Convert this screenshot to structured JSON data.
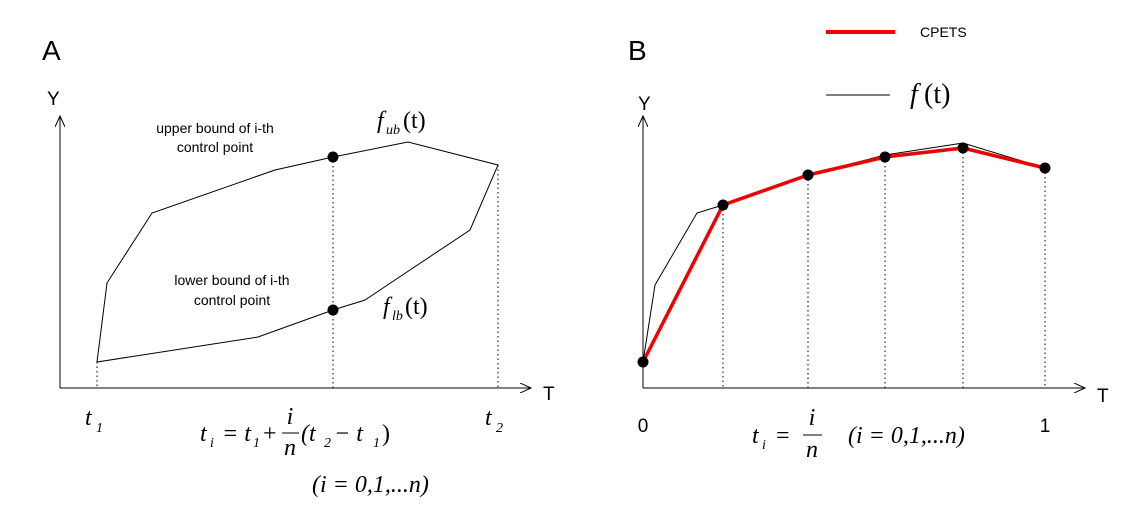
{
  "panel_a": {
    "label": "A",
    "y_axis": "Y",
    "x_axis": "T",
    "upper_label": [
      "upper bound of i-th",
      "control point"
    ],
    "lower_label": [
      "lower bound of i-th",
      "control point"
    ],
    "upper_curve": {
      "name": "f",
      "sub": "ub",
      "arg": "(t)"
    },
    "lower_curve": {
      "name": "f",
      "sub": "lb",
      "arg": "(t)"
    },
    "t1": {
      "name": "t",
      "sub": "1"
    },
    "t2": {
      "name": "t",
      "sub": "2"
    },
    "formula": {
      "lhs": "t",
      "lhs_sub": "i",
      "eq": "= t",
      "eq_sub": "1",
      "plus": "+",
      "num": "i",
      "den": "n",
      "open": "(t",
      "open_sub": "2",
      "minus": "− t",
      "minus_sub": "1",
      "close": ")"
    },
    "range": "(i = 0,1,...n)"
  },
  "panel_b": {
    "label": "B",
    "y_axis": "Y",
    "x_axis": "T",
    "start": "0",
    "end": "1",
    "legend": {
      "cpets": "CPETS",
      "curve": {
        "name": "f",
        "arg": "(t)"
      }
    },
    "formula": {
      "lhs": "t",
      "lhs_sub": "i",
      "eq": "=",
      "num": "i",
      "den": "n"
    },
    "range": "(i = 0,1,...n)"
  }
}
